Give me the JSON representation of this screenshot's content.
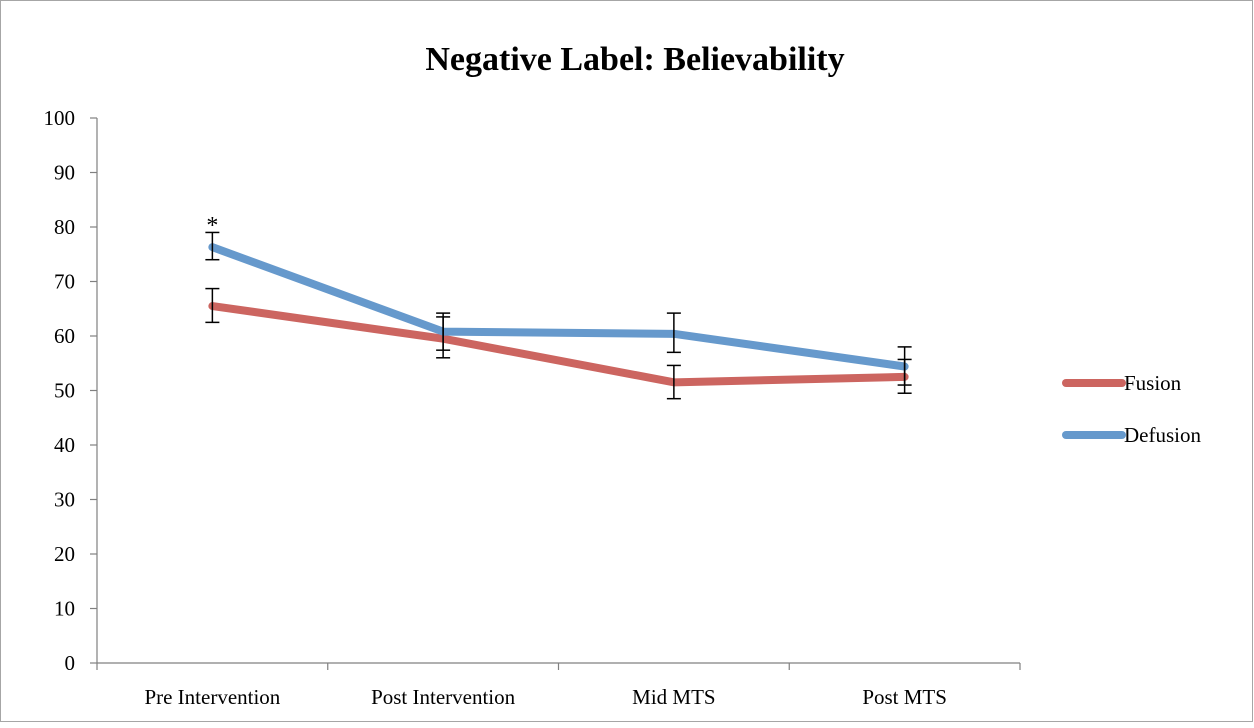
{
  "chart_data": {
    "type": "line",
    "title": "Negative Label: Believability",
    "xlabel": "",
    "ylabel": "",
    "categories": [
      "Pre Intervention",
      "Post Intervention",
      "Mid MTS",
      "Post MTS"
    ],
    "ylim": [
      0,
      100
    ],
    "yticks": [
      0,
      10,
      20,
      30,
      40,
      50,
      60,
      70,
      80,
      90,
      100
    ],
    "grid": false,
    "legend_position": "right",
    "series": [
      {
        "name": "Fusion",
        "color": "#cc6560",
        "values": [
          65.5,
          59.5,
          51.5,
          52.5
        ],
        "error_low": [
          62.5,
          56,
          48.5,
          49.5
        ],
        "error_high": [
          68.7,
          63.5,
          54.6,
          55.7
        ]
      },
      {
        "name": "Defusion",
        "color": "#6699cc",
        "values": [
          76.3,
          60.8,
          60.4,
          54.4
        ],
        "error_low": [
          74,
          57.4,
          57,
          51
        ],
        "error_high": [
          79,
          64.2,
          64.2,
          58
        ]
      }
    ],
    "annotations": [
      {
        "text": "*",
        "category": "Pre Intervention",
        "y": 81.5
      }
    ]
  }
}
